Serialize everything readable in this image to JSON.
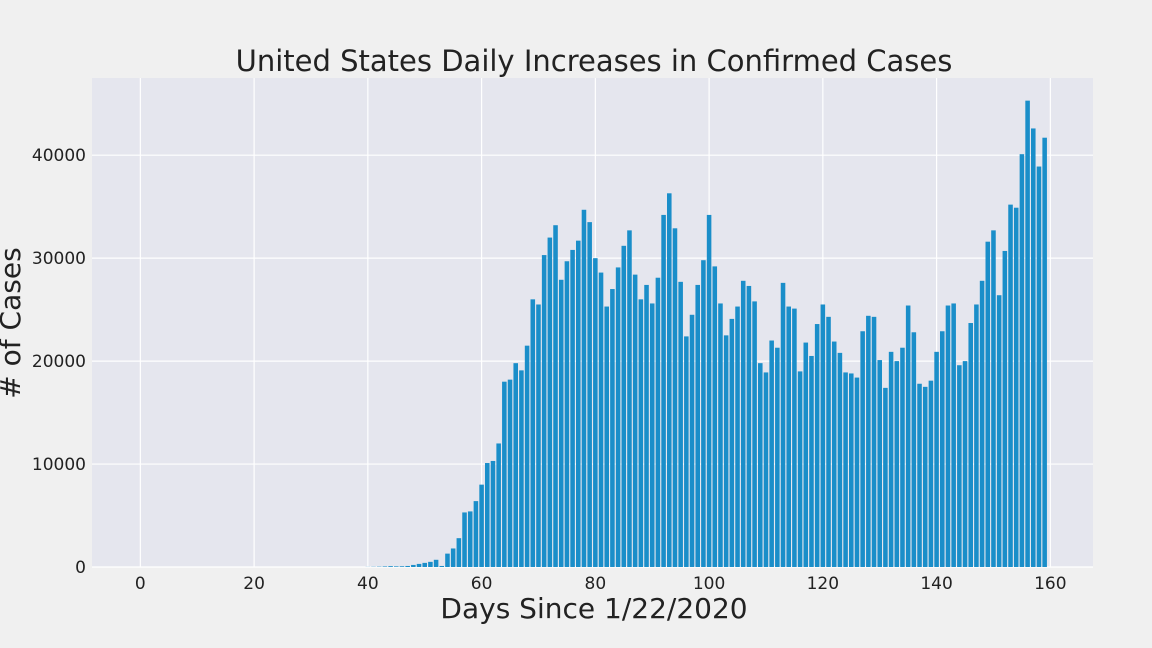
{
  "chart_data": {
    "type": "bar",
    "title": "United States Daily Increases in Confirmed Cases",
    "xlabel": "Days Since 1/22/2020",
    "ylabel": "# of Cases",
    "xlim": [
      -8.5,
      167.5
    ],
    "ylim": [
      0,
      47500
    ],
    "xticks": [
      0,
      20,
      40,
      60,
      80,
      100,
      120,
      140,
      160
    ],
    "yticks": [
      0,
      10000,
      20000,
      30000,
      40000
    ],
    "grid": true,
    "bar_color": "#1a8ec9",
    "plot_background": "#e5e6ee",
    "page_background": "#f0f0f0",
    "x": [
      0,
      1,
      2,
      3,
      4,
      5,
      6,
      7,
      8,
      9,
      10,
      11,
      12,
      13,
      14,
      15,
      16,
      17,
      18,
      19,
      20,
      21,
      22,
      23,
      24,
      25,
      26,
      27,
      28,
      29,
      30,
      31,
      32,
      33,
      34,
      35,
      36,
      37,
      38,
      39,
      40,
      41,
      42,
      43,
      44,
      45,
      46,
      47,
      48,
      49,
      50,
      51,
      52,
      53,
      54,
      55,
      56,
      57,
      58,
      59,
      60,
      61,
      62,
      63,
      64,
      65,
      66,
      67,
      68,
      69,
      70,
      71,
      72,
      73,
      74,
      75,
      76,
      77,
      78,
      79,
      80,
      81,
      82,
      83,
      84,
      85,
      86,
      87,
      88,
      89,
      90,
      91,
      92,
      93,
      94,
      95,
      96,
      97,
      98,
      99,
      100,
      101,
      102,
      103,
      104,
      105,
      106,
      107,
      108,
      109,
      110,
      111,
      112,
      113,
      114,
      115,
      116,
      117,
      118,
      119,
      120,
      121,
      122,
      123,
      124,
      125,
      126,
      127,
      128,
      129,
      130,
      131,
      132,
      133,
      134,
      135,
      136,
      137,
      138,
      139,
      140,
      141,
      142,
      143,
      144,
      145,
      146,
      147,
      148,
      149,
      150,
      151,
      152,
      153,
      154,
      155,
      156,
      157,
      158,
      159
    ],
    "values": [
      0,
      0,
      0,
      0,
      0,
      0,
      0,
      0,
      0,
      0,
      0,
      0,
      0,
      0,
      0,
      0,
      0,
      0,
      0,
      0,
      0,
      0,
      0,
      0,
      0,
      0,
      0,
      0,
      0,
      0,
      0,
      0,
      0,
      0,
      0,
      0,
      0,
      0,
      0,
      0,
      10,
      20,
      30,
      50,
      80,
      60,
      70,
      100,
      200,
      300,
      400,
      500,
      700,
      100,
      1300,
      1800,
      2800,
      5300,
      5400,
      6400,
      8000,
      10100,
      10300,
      12000,
      18000,
      18200,
      19800,
      19100,
      21500,
      26000,
      25500,
      30300,
      32000,
      33200,
      27900,
      29700,
      30800,
      31700,
      34700,
      33500,
      30000,
      28600,
      25300,
      27000,
      29100,
      31200,
      32700,
      28400,
      26000,
      27400,
      25600,
      28100,
      34200,
      36300,
      32900,
      27700,
      22400,
      24500,
      27400,
      29800,
      34200,
      29200,
      25600,
      22500,
      24100,
      25300,
      27800,
      27300,
      25800,
      19800,
      18900,
      22000,
      21300,
      27600,
      25300,
      25100,
      19000,
      21800,
      20500,
      23600,
      25500,
      24300,
      21900,
      20800,
      18900,
      18800,
      18400,
      22900,
      24400,
      24300,
      20100,
      17400,
      20900,
      20000,
      21300,
      25400,
      22800,
      17800,
      17500,
      18100,
      20900,
      22900,
      25400,
      25600,
      19600,
      20000,
      23700,
      25500,
      27800,
      31600,
      32700,
      26400,
      30700,
      35200,
      34900,
      40100,
      45300,
      42600,
      38900,
      41700
    ]
  }
}
